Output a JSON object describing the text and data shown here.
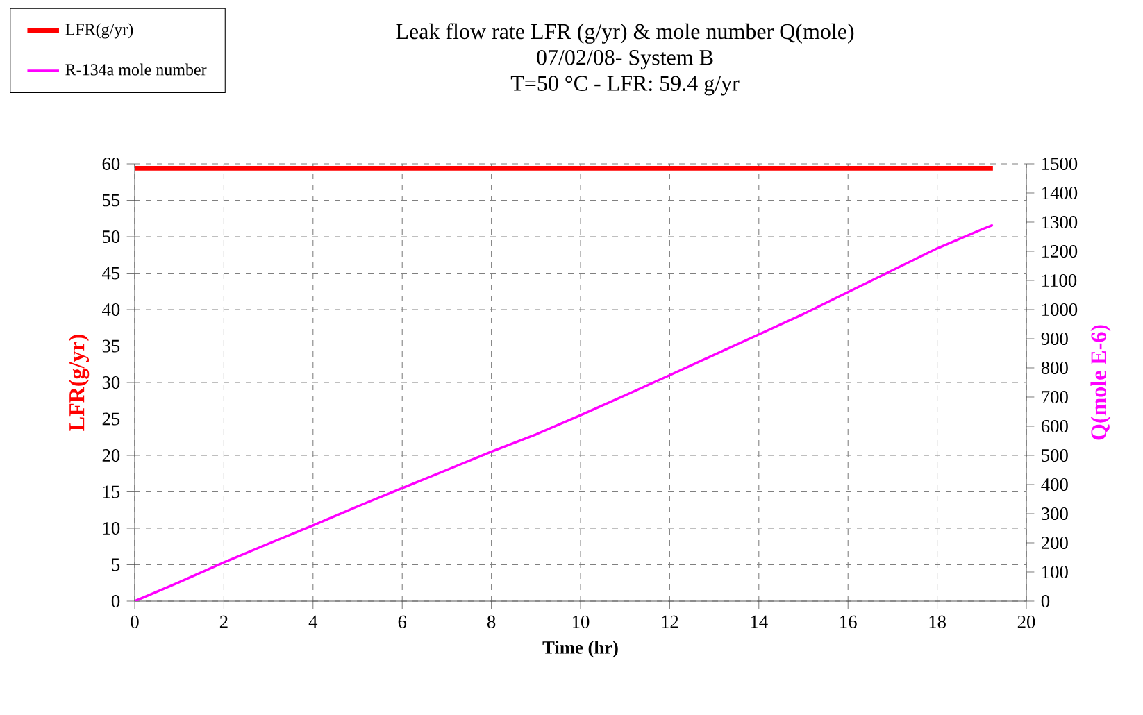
{
  "chart_data": {
    "type": "line",
    "title": "Leak flow rate LFR (g/yr) & mole number Q(mole)",
    "subtitle": "07/02/08- System B",
    "annotations": [
      "T=50 °C - LFR: 59.4 g/yr"
    ],
    "xlabel": "Time (hr)",
    "ylabel": "LFR(g/yr)",
    "y2label": "Q(mole E-6)",
    "series": [
      {
        "name": "LFR(g/yr)",
        "color": "#ff0000",
        "x": [
          0,
          19.25
        ],
        "values": [
          59.4,
          59.4
        ]
      },
      {
        "name": "R-134a mole number",
        "color": "#ff00ff",
        "axis": "y2",
        "x": [
          0,
          1,
          2,
          3,
          4,
          5,
          6,
          7,
          8,
          9,
          10,
          11,
          12,
          13,
          14,
          15,
          16,
          17,
          18,
          19,
          19.25
        ],
        "values": [
          0,
          65,
          133,
          197,
          260,
          325,
          388,
          450,
          513,
          572,
          638,
          706,
          775,
          845,
          915,
          985,
          1060,
          1135,
          1210,
          1275,
          1290
        ]
      }
    ],
    "xlim": [
      0,
      20
    ],
    "xticks": [
      0,
      2,
      4,
      6,
      8,
      10,
      12,
      14,
      16,
      18,
      20
    ],
    "ylim": [
      0,
      60
    ],
    "yticks": [
      0,
      5,
      10,
      15,
      20,
      25,
      30,
      35,
      40,
      45,
      50,
      55,
      60
    ],
    "y2lim": [
      0,
      1500
    ],
    "y2ticks": [
      0,
      100,
      200,
      300,
      400,
      500,
      600,
      700,
      800,
      900,
      1000,
      1100,
      1200,
      1300,
      1400,
      1500
    ],
    "grid": true,
    "legend": "top left",
    "marker": "none",
    "line_style": "solid"
  }
}
